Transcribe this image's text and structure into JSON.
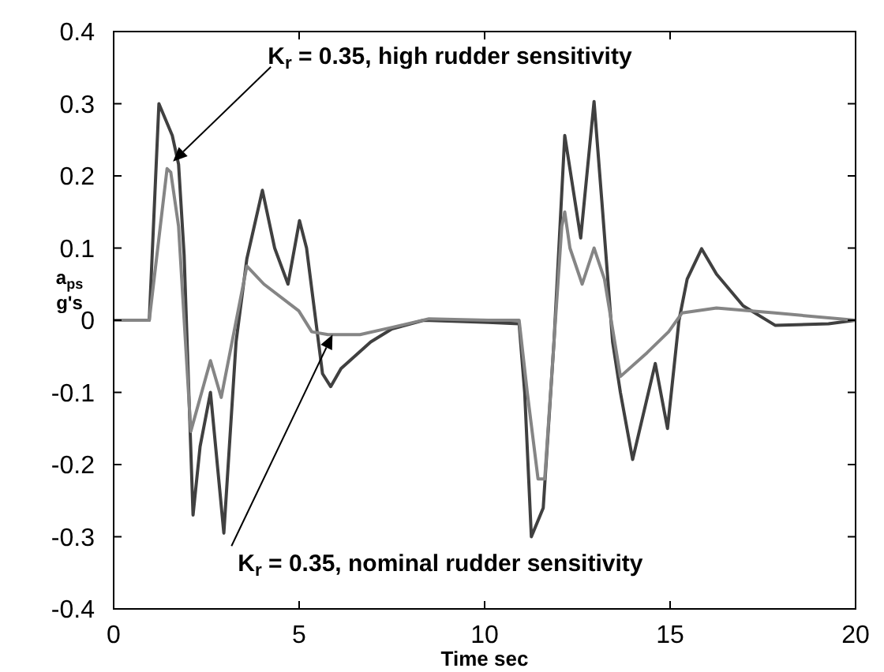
{
  "chart_data": {
    "type": "line",
    "xlabel": "Time sec",
    "ylabel": "a$_{ps}$\ng's",
    "xlim": [
      0,
      20
    ],
    "xticks": [
      0,
      5,
      10,
      15,
      20
    ],
    "ylim": [
      -0.4,
      0.4
    ],
    "yticks": [
      -0.4,
      -0.3,
      -0.2,
      -0.1,
      0,
      0.1,
      0.2,
      0.3,
      0.4
    ],
    "series": [
      {
        "color": "#404040",
        "x": [
          0,
          0.96,
          1.22,
          1.58,
          1.75,
          1.9,
          2.14,
          2.33,
          2.61,
          2.97,
          3.3,
          3.59,
          4.01,
          4.34,
          4.7,
          5.01,
          5.2,
          5.63,
          5.85,
          6.13,
          6.93,
          7.5,
          8.36,
          10.1,
          10.93,
          11.08,
          11.26,
          11.58,
          11.87,
          12.16,
          12.59,
          12.95,
          13.16,
          13.45,
          13.66,
          13.99,
          14.6,
          14.93,
          15.24,
          15.46,
          15.85,
          16.25,
          16.97,
          17.83,
          19.27,
          20
        ],
        "values": [
          0,
          0,
          0.3,
          0.256,
          0.216,
          0.09,
          -0.27,
          -0.175,
          -0.1,
          -0.295,
          -0.03,
          0.085,
          0.18,
          0.1,
          0.05,
          0.138,
          0.1,
          -0.074,
          -0.092,
          -0.067,
          -0.03,
          -0.012,
          0,
          -0.003,
          -0.005,
          -0.1,
          -0.3,
          -0.26,
          -0.03,
          0.256,
          0.114,
          0.303,
          0.165,
          -0.03,
          -0.1,
          -0.193,
          -0.06,
          -0.15,
          0,
          0.057,
          0.099,
          0.064,
          0.02,
          -0.007,
          -0.005,
          0
        ]
      },
      {
        "color": "#858585",
        "x": [
          0,
          0.96,
          1.44,
          1.54,
          1.75,
          2.08,
          2.61,
          2.9,
          3.59,
          4.05,
          4.99,
          5.34,
          5.78,
          6.64,
          7.5,
          8.5,
          10.1,
          10.93,
          11.15,
          11.44,
          11.62,
          12.08,
          12.16,
          12.3,
          12.63,
          12.95,
          13.23,
          13.66,
          14.38,
          14.96,
          15.32,
          16.25,
          17.83,
          20
        ],
        "values": [
          0,
          0,
          0.21,
          0.205,
          0.13,
          -0.154,
          -0.056,
          -0.107,
          0.075,
          0.05,
          0.013,
          -0.016,
          -0.02,
          -0.02,
          -0.01,
          0.002,
          0,
          0,
          -0.1,
          -0.22,
          -0.22,
          0.13,
          0.15,
          0.1,
          0.05,
          0.1,
          0.057,
          -0.078,
          -0.045,
          -0.016,
          0.01,
          0.017,
          0.01,
          0
        ]
      }
    ],
    "annotations": [
      {
        "text": "K$_{r}$ = 0.35, high rudder sensitivity",
        "x": 1.6,
        "y": 0.22
      },
      {
        "text": "K$_{r}$ = 0.35, nominal rudder sensitivity",
        "x": 5.9,
        "y": -0.02
      }
    ]
  }
}
